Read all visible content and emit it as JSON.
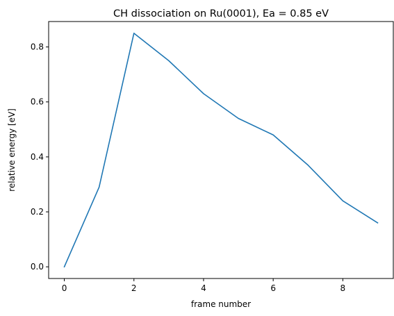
{
  "chart_data": {
    "type": "line",
    "title": "CH dissociation on Ru(0001), Ea = 0.85 eV",
    "xlabel": "frame number",
    "ylabel": "relative energy [eV]",
    "x": [
      0,
      1,
      2,
      3,
      4,
      5,
      6,
      7,
      8,
      9
    ],
    "series": [
      {
        "values": [
          0.0,
          0.29,
          0.85,
          0.75,
          0.63,
          0.54,
          0.48,
          0.37,
          0.24,
          0.16
        ],
        "color": "#1f77b4"
      }
    ],
    "xlim": [
      -0.45,
      9.45
    ],
    "ylim": [
      -0.0425,
      0.8925
    ],
    "xticks": [
      0,
      2,
      4,
      6,
      8
    ],
    "xtick_labels": [
      "0",
      "2",
      "4",
      "6",
      "8"
    ],
    "yticks": [
      0.0,
      0.2,
      0.4,
      0.6,
      0.8
    ],
    "ytick_labels": [
      "0.0",
      "0.2",
      "0.4",
      "0.6",
      "0.8"
    ],
    "grid": false,
    "legend": "none"
  }
}
